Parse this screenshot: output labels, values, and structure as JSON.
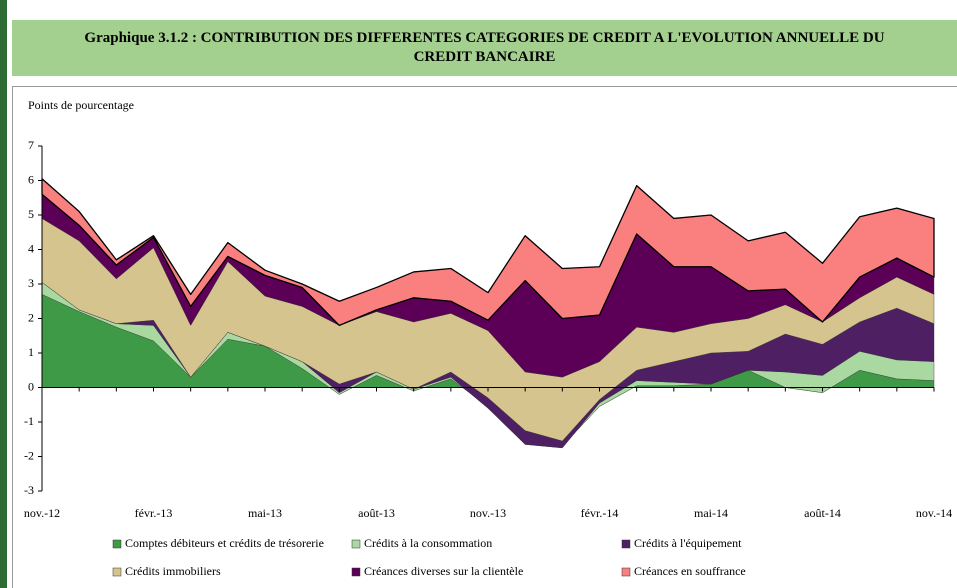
{
  "chart_data": {
    "type": "stacked_area",
    "title": "Graphique 3.1.2 : CONTRIBUTION DES DIFFERENTES CATEGORIES DE CREDIT A L'EVOLUTION ANNUELLE DU CREDIT BANCAIRE",
    "y_label": "Points de pourcentage",
    "categories": [
      "nov.-12",
      null,
      null,
      "févr.-13",
      null,
      null,
      "mai-13",
      null,
      null,
      "août-13",
      null,
      null,
      "nov.-13",
      null,
      null,
      "févr.-14",
      null,
      null,
      "mai-14",
      null,
      null,
      "août-14",
      null,
      null,
      "nov.-14"
    ],
    "ylim": [
      -3,
      7
    ],
    "yticks": [
      -3,
      -2,
      -1,
      0,
      1,
      2,
      3,
      4,
      5,
      6,
      7
    ],
    "series": [
      {
        "name": "Comptes débiteurs et crédits de trésorerie",
        "color": "#3f9a48",
        "values": [
          2.7,
          2.2,
          1.75,
          1.35,
          0.3,
          1.4,
          1.2,
          0.55,
          -0.2,
          0.35,
          -0.1,
          0.25,
          -0.55,
          -1.6,
          -1.7,
          -0.55,
          0.05,
          0.05,
          0.1,
          0.5,
          0.0,
          -0.15,
          0.5,
          0.25,
          0.2
        ]
      },
      {
        "name": "Crédits à la consommation",
        "color": "#a9d9a1",
        "values": [
          0.35,
          0.05,
          0.1,
          0.45,
          0,
          0.2,
          0,
          0.2,
          0.05,
          0.1,
          0.05,
          0.05,
          -0.05,
          -0.05,
          -0.05,
          0.1,
          0.15,
          0.1,
          0,
          0,
          0.45,
          0.5,
          0.55,
          0.55,
          0.55
        ]
      },
      {
        "name": "Crédits à l'équipement",
        "color": "#4e1f63",
        "values": [
          0,
          0,
          0,
          0.15,
          0,
          0,
          0,
          0,
          0.25,
          0,
          0,
          0.15,
          0.3,
          0.4,
          0.2,
          0.1,
          0.3,
          0.6,
          0.9,
          0.55,
          1.1,
          0.9,
          0.85,
          1.5,
          1.1
        ]
      },
      {
        "name": "Crédits immobiliers",
        "color": "#d5c48d",
        "values": [
          1.85,
          2.0,
          1.3,
          2.1,
          1.5,
          2.05,
          1.45,
          1.6,
          1.7,
          1.75,
          1.95,
          1.7,
          1.95,
          1.7,
          1.85,
          1.1,
          1.25,
          0.85,
          0.85,
          0.95,
          0.85,
          0.65,
          0.7,
          0.9,
          0.85
        ]
      },
      {
        "name": "Créances diverses sur la clientèle",
        "color": "#5c0057",
        "values": [
          0.7,
          0.45,
          0.4,
          0.3,
          0.55,
          0.15,
          0.6,
          0.55,
          0,
          0.05,
          0.7,
          0.35,
          0.3,
          2.65,
          1.7,
          1.35,
          2.7,
          1.9,
          1.65,
          0.8,
          0.45,
          0,
          0.6,
          0.55,
          0.5
        ]
      },
      {
        "name": "Créances en souffrance",
        "color": "#fa8080",
        "values": [
          0.45,
          0.4,
          0.15,
          0.05,
          0.35,
          0.4,
          0.15,
          0.1,
          0.7,
          0.65,
          0.75,
          0.95,
          0.8,
          1.3,
          1.45,
          1.4,
          1.4,
          1.4,
          1.5,
          1.45,
          1.65,
          1.7,
          1.75,
          1.45,
          1.7
        ]
      }
    ]
  }
}
